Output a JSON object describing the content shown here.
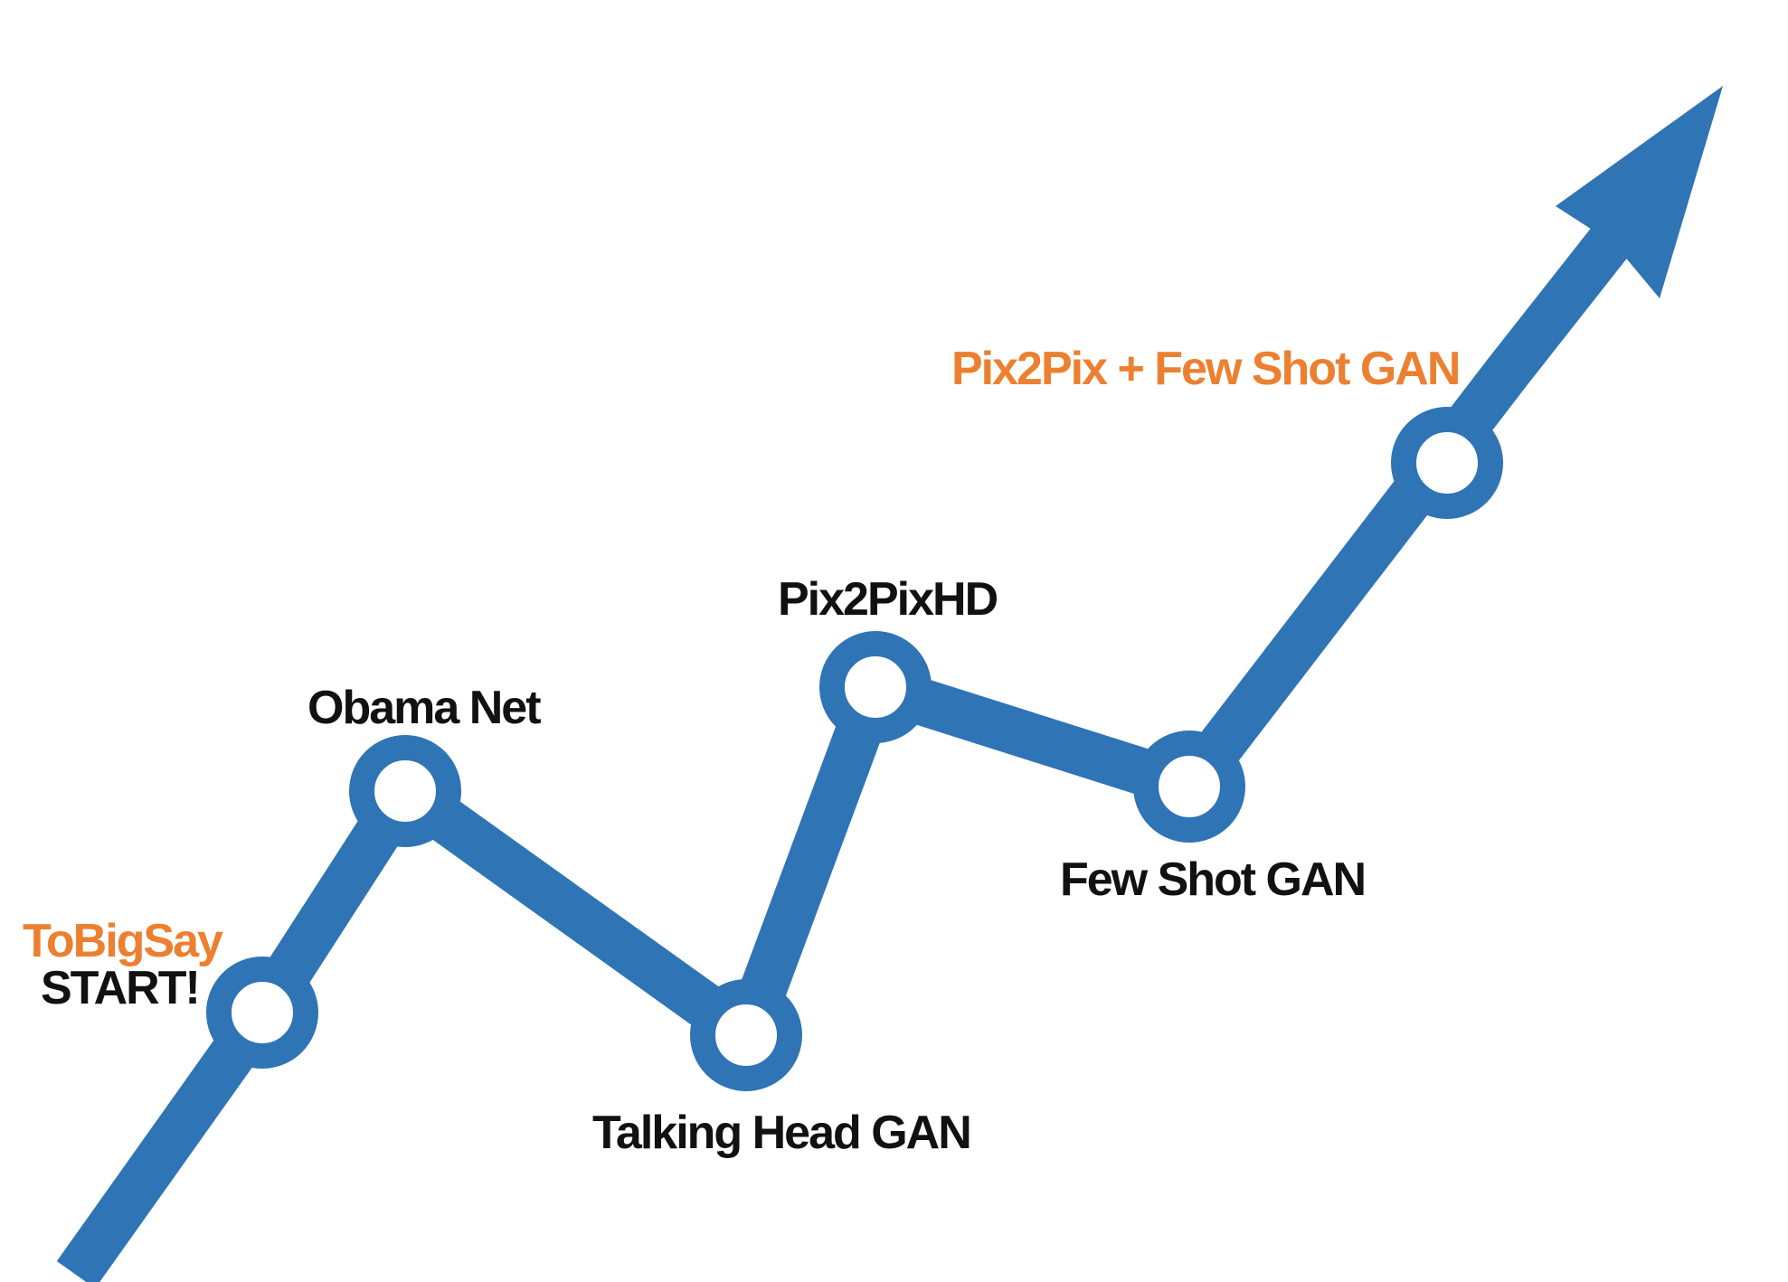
{
  "colors": {
    "line": "#2f74b5",
    "node_fill": "#ffffff",
    "label_dark": "#111111",
    "label_accent": "#ec8030"
  },
  "labels": {
    "brand": "ToBigSay",
    "start": "START!",
    "obama_net": "Obama Net",
    "talking_head": "Talking Head GAN",
    "pix2pixhd": "Pix2PixHD",
    "few_shot": "Few Shot GAN",
    "pix2pix_few_shot": "Pix2Pix + Few Shot GAN"
  },
  "nodes": [
    {
      "id": "start",
      "label_key": "start"
    },
    {
      "id": "obama-net",
      "label_key": "obama_net"
    },
    {
      "id": "talking-head-gan",
      "label_key": "talking_head"
    },
    {
      "id": "pix2pixhd",
      "label_key": "pix2pixhd"
    },
    {
      "id": "few-shot-gan",
      "label_key": "few_shot"
    },
    {
      "id": "pix2pix-few-shot-gan",
      "label_key": "pix2pix_few_shot"
    }
  ],
  "arrow": {
    "icon": "arrow-up-right-icon"
  }
}
